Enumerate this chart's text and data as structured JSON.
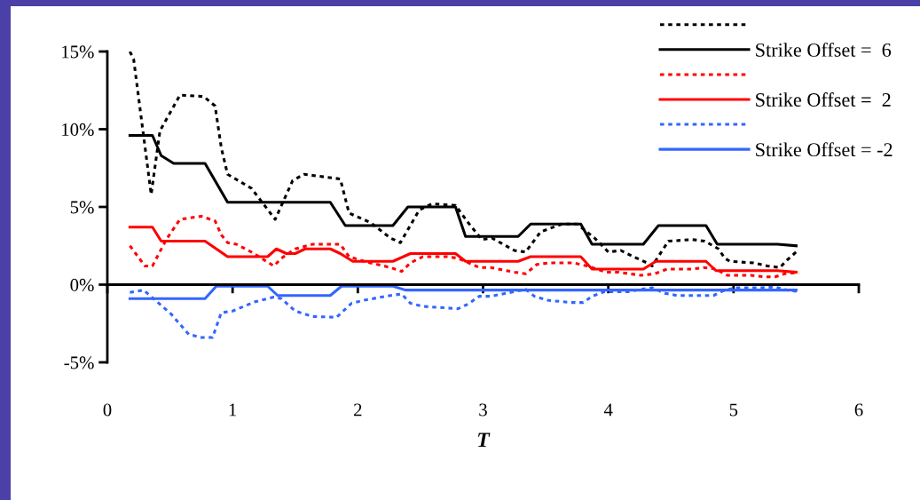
{
  "chart_data": {
    "type": "line",
    "xlabel": "T",
    "xlim": [
      0,
      6
    ],
    "xticks": [
      0,
      1,
      2,
      3,
      4,
      5,
      6
    ],
    "ylim": [
      -5,
      15
    ],
    "yticks": [
      {
        "value": -5,
        "label": "-5%"
      },
      {
        "value": 0,
        "label": "0%"
      },
      {
        "value": 5,
        "label": "5%"
      },
      {
        "value": 10,
        "label": "10%"
      },
      {
        "value": 15,
        "label": "15%"
      }
    ],
    "legend": "top right",
    "marker": "none",
    "series": [
      {
        "color": "#000000",
        "line_style": "dotted",
        "x": [
          0.18,
          0.21,
          0.35,
          0.42,
          0.58,
          0.77,
          0.86,
          0.91,
          0.96,
          1.15,
          1.34,
          1.48,
          1.57,
          1.86,
          1.93,
          2.1,
          2.26,
          2.34,
          2.49,
          2.59,
          2.78,
          2.88,
          2.99,
          3.07,
          3.25,
          3.34,
          3.46,
          3.63,
          3.75,
          3.89,
          3.94,
          4.0,
          4.1,
          4.2,
          4.31,
          4.35,
          4.48,
          4.67,
          4.77,
          4.88,
          4.93,
          4.97,
          5.16,
          5.27,
          5.37,
          5.43,
          5.5
        ],
        "values": [
          15.0,
          14.5,
          5.8,
          9.9,
          12.2,
          12.1,
          11.5,
          8.8,
          7.1,
          6.2,
          4.2,
          6.7,
          7.1,
          6.8,
          4.6,
          4.0,
          3.0,
          2.7,
          4.8,
          5.2,
          5.1,
          4.0,
          2.9,
          3.0,
          2.2,
          2.1,
          3.4,
          3.9,
          3.9,
          3.0,
          2.6,
          2.1,
          2.2,
          1.8,
          1.4,
          1.2,
          2.8,
          2.9,
          2.8,
          2.3,
          1.7,
          1.5,
          1.4,
          1.2,
          1.1,
          1.6,
          2.1
        ]
      },
      {
        "name": "Strike Offset =  6",
        "color": "#000000",
        "line_style": "solid",
        "x": [
          0.18,
          0.36,
          0.43,
          0.53,
          0.78,
          0.96,
          1.78,
          1.9,
          2.28,
          2.4,
          2.78,
          2.86,
          3.28,
          3.38,
          3.78,
          3.87,
          4.28,
          4.4,
          4.78,
          4.87,
          5.35,
          5.5
        ],
        "values": [
          9.6,
          9.6,
          8.3,
          7.8,
          7.8,
          5.3,
          5.3,
          3.8,
          3.8,
          5.0,
          5.0,
          3.1,
          3.1,
          3.9,
          3.9,
          2.6,
          2.6,
          3.8,
          3.8,
          2.6,
          2.6,
          2.5
        ]
      },
      {
        "color": "#ff0000",
        "line_style": "dotted",
        "x": [
          0.18,
          0.3,
          0.36,
          0.47,
          0.58,
          0.75,
          0.86,
          0.91,
          0.96,
          1.03,
          1.15,
          1.33,
          1.39,
          1.5,
          1.64,
          1.86,
          1.93,
          2.05,
          2.26,
          2.35,
          2.42,
          2.52,
          2.71,
          2.8,
          2.97,
          3.06,
          3.25,
          3.34,
          3.43,
          3.53,
          3.72,
          3.83,
          3.91,
          3.98,
          4.08,
          4.26,
          4.37,
          4.47,
          4.67,
          4.76,
          4.86,
          4.95,
          5.14,
          5.25,
          5.33,
          5.43,
          5.52
        ],
        "values": [
          2.5,
          1.2,
          1.2,
          2.9,
          4.2,
          4.4,
          4.1,
          3.2,
          2.7,
          2.6,
          2.1,
          1.2,
          1.7,
          2.3,
          2.6,
          2.6,
          1.8,
          1.5,
          1.1,
          0.85,
          1.4,
          1.8,
          1.8,
          1.7,
          1.1,
          1.1,
          0.8,
          0.7,
          1.3,
          1.4,
          1.4,
          1.2,
          1.0,
          0.8,
          0.8,
          0.6,
          0.7,
          1.0,
          1.0,
          1.1,
          1.0,
          0.6,
          0.6,
          0.5,
          0.5,
          0.75,
          0.75
        ]
      },
      {
        "name": "Strike Offset =  2",
        "color": "#ff0000",
        "line_style": "solid",
        "x": [
          0.18,
          0.36,
          0.43,
          0.78,
          0.96,
          1.28,
          1.35,
          1.43,
          1.5,
          1.58,
          1.78,
          1.86,
          1.96,
          2.28,
          2.42,
          2.78,
          2.86,
          3.28,
          3.38,
          3.78,
          3.87,
          4.28,
          4.38,
          4.78,
          4.86,
          5.35,
          5.5
        ],
        "values": [
          3.7,
          3.7,
          2.8,
          2.8,
          1.8,
          1.8,
          2.3,
          2.0,
          2.0,
          2.3,
          2.3,
          2.0,
          1.5,
          1.5,
          2.0,
          2.0,
          1.5,
          1.5,
          1.8,
          1.8,
          1.0,
          1.0,
          1.5,
          1.5,
          0.9,
          0.9,
          0.8
        ]
      },
      {
        "color": "#3366ff",
        "line_style": "dotted",
        "x": [
          0.18,
          0.29,
          0.44,
          0.51,
          0.65,
          0.75,
          0.84,
          0.91,
          1.0,
          1.18,
          1.33,
          1.39,
          1.5,
          1.64,
          1.83,
          1.95,
          2.05,
          2.26,
          2.35,
          2.42,
          2.52,
          2.71,
          2.8,
          2.88,
          2.97,
          3.06,
          3.25,
          3.34,
          3.41,
          3.51,
          3.7,
          3.8,
          3.87,
          3.97,
          4.05,
          4.16,
          4.26,
          4.35,
          4.45,
          4.55,
          4.74,
          4.84,
          4.93,
          5.03,
          5.13,
          5.22,
          5.33,
          5.43,
          5.52
        ],
        "values": [
          -0.5,
          -0.35,
          -1.4,
          -1.9,
          -3.2,
          -3.4,
          -3.4,
          -1.8,
          -1.7,
          -1.1,
          -0.8,
          -0.9,
          -1.7,
          -2.05,
          -2.1,
          -1.2,
          -1.0,
          -0.7,
          -0.6,
          -1.2,
          -1.4,
          -1.5,
          -1.55,
          -1.25,
          -0.75,
          -0.75,
          -0.45,
          -0.3,
          -0.75,
          -1.0,
          -1.15,
          -1.15,
          -0.75,
          -0.45,
          -0.45,
          -0.45,
          -0.3,
          -0.2,
          -0.55,
          -0.7,
          -0.7,
          -0.7,
          -0.35,
          -0.2,
          -0.2,
          -0.2,
          -0.15,
          -0.35,
          -0.45
        ]
      },
      {
        "name": "Strike Offset = -2",
        "color": "#3366ff",
        "line_style": "solid",
        "x": [
          0.18,
          0.78,
          0.87,
          1.28,
          1.36,
          1.78,
          1.87,
          2.28,
          2.38,
          5.5
        ],
        "values": [
          -0.9,
          -0.9,
          -0.1,
          -0.1,
          -0.7,
          -0.7,
          -0.1,
          -0.1,
          -0.35,
          -0.35
        ]
      }
    ]
  }
}
